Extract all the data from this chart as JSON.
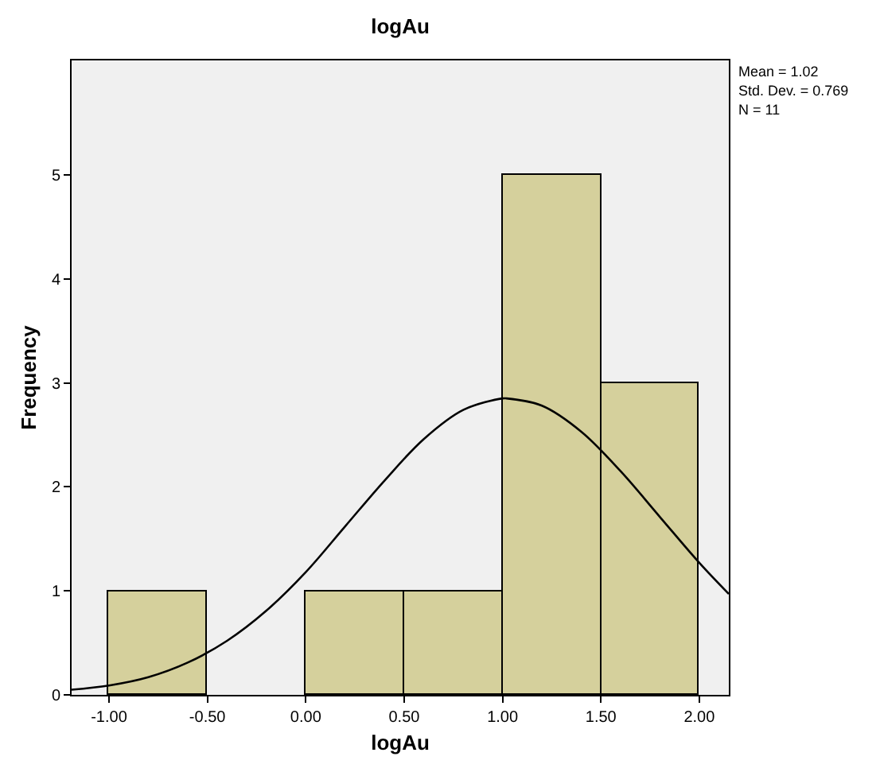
{
  "chart_data": {
    "type": "histogram",
    "title": "logAu",
    "xlabel": "logAu",
    "ylabel": "Frequency",
    "bins": [
      -1.0,
      -0.5,
      0.0,
      0.5,
      1.0,
      1.5,
      2.0
    ],
    "values": [
      1,
      0,
      1,
      1,
      5,
      3
    ],
    "color": "#d5d09c",
    "series": [
      {
        "type": "line",
        "color": "#000000",
        "x": [
          -1.19,
          -1.0,
          -0.8,
          -0.6,
          -0.4,
          -0.2,
          0.0,
          0.2,
          0.4,
          0.6,
          0.8,
          1.0,
          1.02,
          1.2,
          1.4,
          1.6,
          1.8,
          2.0,
          2.15
        ],
        "values": [
          0.05,
          0.09,
          0.17,
          0.31,
          0.52,
          0.81,
          1.18,
          1.62,
          2.06,
          2.46,
          2.74,
          2.85,
          2.85,
          2.78,
          2.53,
          2.15,
          1.71,
          1.27,
          0.97
        ]
      }
    ],
    "xlim": [
      -1.19,
      2.15
    ],
    "xticks": [
      {
        "value": -1.0,
        "label": "-1.00"
      },
      {
        "value": -0.5,
        "label": "-0.50"
      },
      {
        "value": 0.0,
        "label": "0.00"
      },
      {
        "value": 0.5,
        "label": "0.50"
      },
      {
        "value": 1.0,
        "label": "1.00"
      },
      {
        "value": 1.5,
        "label": "1.50"
      },
      {
        "value": 2.0,
        "label": "2.00"
      }
    ],
    "ylim": [
      0,
      6.1
    ],
    "yticks": [
      0,
      1,
      2,
      3,
      4,
      5
    ],
    "grid": false,
    "annotations": [
      "Mean = 1.02",
      "Std. Dev. = 0.769",
      "N = 11"
    ]
  }
}
